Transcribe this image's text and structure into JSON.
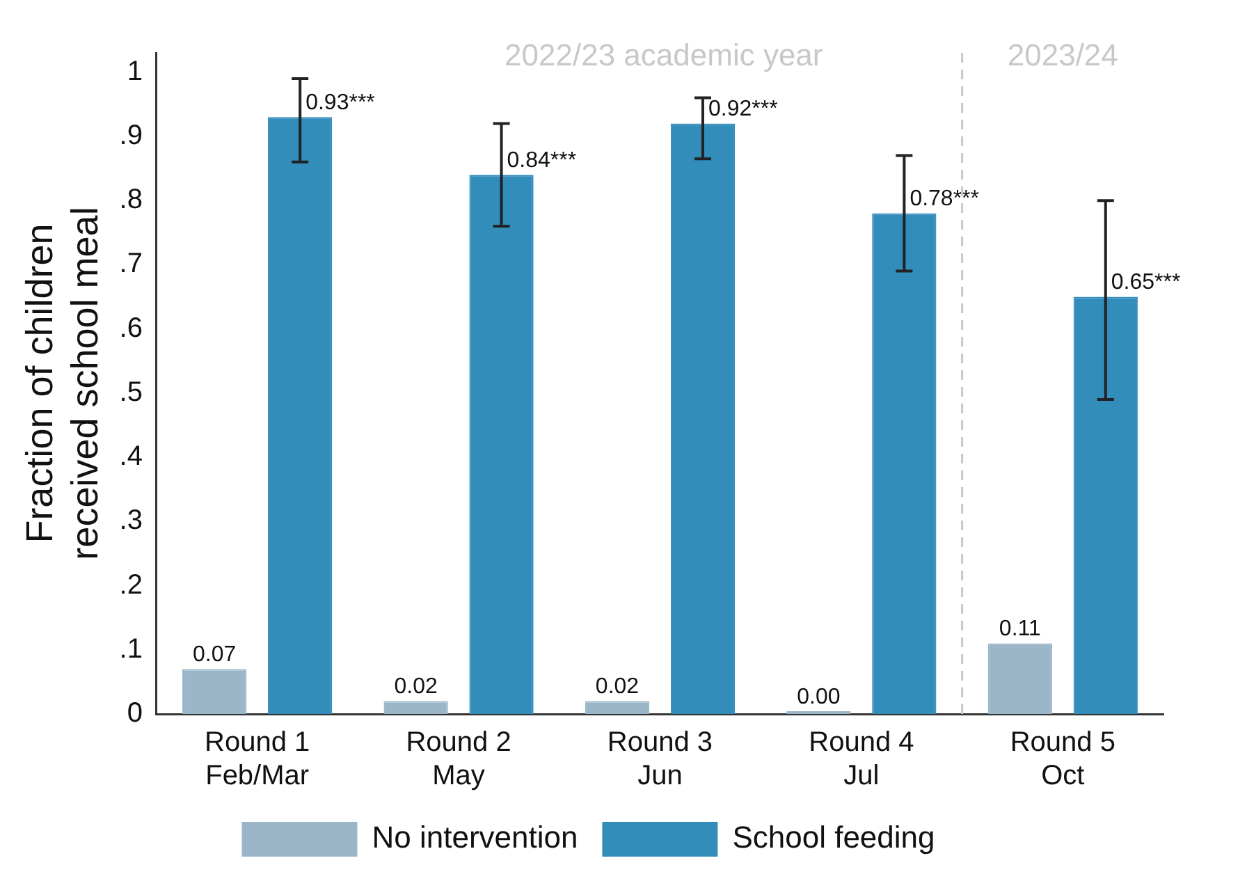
{
  "chart_data": {
    "type": "bar",
    "ylabel": "Fraction of children\nreceived school meal",
    "categories": [
      "Round 1\nFeb/Mar",
      "Round 2\nMay",
      "Round 3\nJun",
      "Round 4\nJul",
      "Round 5\nOct"
    ],
    "series": [
      {
        "name": "No intervention",
        "color": "#9ab6c8",
        "values": [
          0.07,
          0.02,
          0.02,
          0.0,
          0.11
        ],
        "value_labels": [
          "0.07",
          "0.02",
          "0.02",
          "0.00",
          "0.11"
        ]
      },
      {
        "name": "School feeding",
        "color": "#328dbb",
        "values": [
          0.93,
          0.84,
          0.92,
          0.78,
          0.65
        ],
        "value_labels": [
          "0.93***",
          "0.84***",
          "0.92***",
          "0.78***",
          "0.65***"
        ],
        "errors": [
          [
            0.86,
            0.99
          ],
          [
            0.76,
            0.92
          ],
          [
            0.865,
            0.96
          ],
          [
            0.69,
            0.87
          ],
          [
            0.49,
            0.8
          ]
        ]
      }
    ],
    "ylim": [
      0,
      1.03
    ],
    "yticks": [
      {
        "value": 0,
        "label": "0"
      },
      {
        "value": 0.1,
        "label": ".1"
      },
      {
        "value": 0.2,
        "label": ".2"
      },
      {
        "value": 0.3,
        "label": ".3"
      },
      {
        "value": 0.4,
        "label": ".4"
      },
      {
        "value": 0.5,
        "label": ".5"
      },
      {
        "value": 0.6,
        "label": ".6"
      },
      {
        "value": 0.7,
        "label": ".7"
      },
      {
        "value": 0.8,
        "label": ".8"
      },
      {
        "value": 0.9,
        "label": ".9"
      },
      {
        "value": 1,
        "label": "1"
      }
    ],
    "annotations": [
      "2022/23 academic year",
      "2023/24"
    ],
    "grid": false,
    "legend": "bottom"
  }
}
